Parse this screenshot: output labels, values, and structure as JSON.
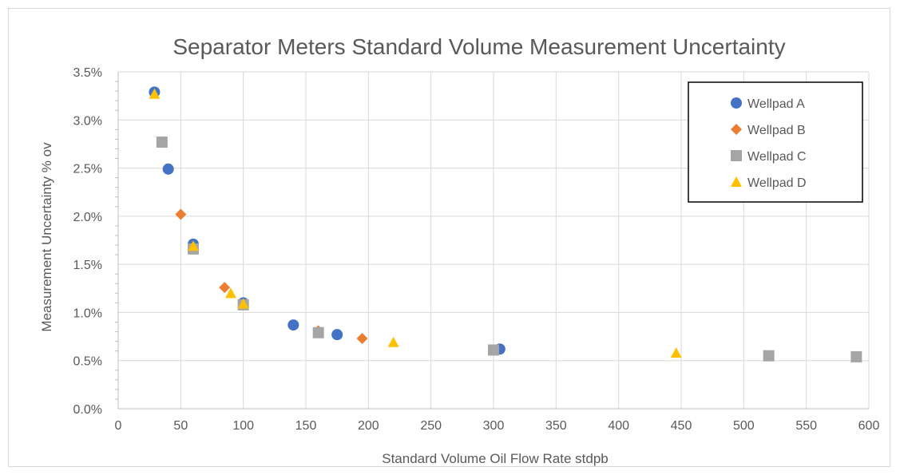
{
  "chart_data": {
    "type": "scatter",
    "title": "Separator Meters Standard Volume Measurement Uncertainty",
    "xlabel": "Standard Volume Oil Flow Rate stdpb",
    "ylabel": "Measurement Uncertainty % ov",
    "xlim": [
      0,
      600
    ],
    "ylim": [
      0,
      0.035
    ],
    "x_ticks": [
      "0",
      "50",
      "100",
      "150",
      "200",
      "250",
      "300",
      "350",
      "400",
      "450",
      "500",
      "550",
      "600"
    ],
    "y_ticks": [
      "0.0%",
      "0.5%",
      "1.0%",
      "1.5%",
      "2.0%",
      "2.5%",
      "3.0%",
      "3.5%"
    ],
    "grid": true,
    "legend_position": "top-right",
    "series": [
      {
        "name": "Wellpad A",
        "marker": "circle",
        "color": "#4472c4",
        "points": [
          {
            "x": 29,
            "y": 0.0329
          },
          {
            "x": 40,
            "y": 0.0249
          },
          {
            "x": 60,
            "y": 0.0171
          },
          {
            "x": 100,
            "y": 0.011
          },
          {
            "x": 140,
            "y": 0.0087
          },
          {
            "x": 175,
            "y": 0.0077
          },
          {
            "x": 305,
            "y": 0.0062
          }
        ]
      },
      {
        "name": "Wellpad B",
        "marker": "diamond",
        "color": "#ed7d31",
        "points": [
          {
            "x": 50,
            "y": 0.0202
          },
          {
            "x": 85,
            "y": 0.0126
          },
          {
            "x": 160,
            "y": 0.0081
          },
          {
            "x": 195,
            "y": 0.0073
          }
        ]
      },
      {
        "name": "Wellpad C",
        "marker": "square",
        "color": "#a5a5a5",
        "points": [
          {
            "x": 35,
            "y": 0.0277
          },
          {
            "x": 60,
            "y": 0.0166
          },
          {
            "x": 100,
            "y": 0.0108
          },
          {
            "x": 160,
            "y": 0.0079
          },
          {
            "x": 300,
            "y": 0.0061
          },
          {
            "x": 520,
            "y": 0.0055
          },
          {
            "x": 590,
            "y": 0.0054
          }
        ]
      },
      {
        "name": "Wellpad D",
        "marker": "triangle",
        "color": "#ffc000",
        "points": [
          {
            "x": 29,
            "y": 0.0327
          },
          {
            "x": 60,
            "y": 0.0169
          },
          {
            "x": 90,
            "y": 0.012
          },
          {
            "x": 100,
            "y": 0.0109
          },
          {
            "x": 220,
            "y": 0.0069
          },
          {
            "x": 446,
            "y": 0.0058
          }
        ]
      }
    ]
  }
}
